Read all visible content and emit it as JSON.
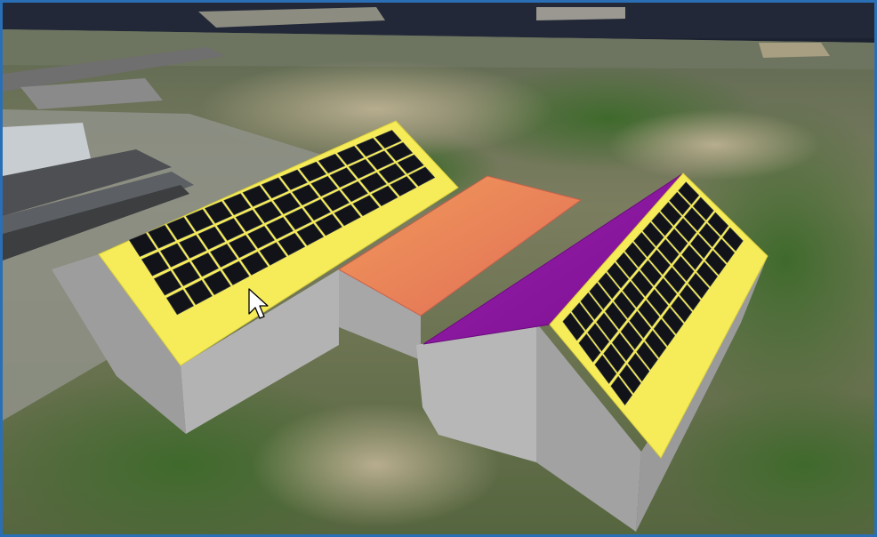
{
  "viewport": {
    "kind": "3d-map-view",
    "frame_color": "#2a6fb5",
    "sky_color": "#222838"
  },
  "scene": {
    "buildings": [
      {
        "id": "left-building",
        "roof_color": "#f7ef5a",
        "wall_color": "#b0b0b0",
        "solar_panel_columns": 14,
        "solar_panel_rows": 4
      },
      {
        "id": "middle-connector",
        "roof_gradient": [
          "#f0935a",
          "#e07050"
        ],
        "wall_color": "#a8a8a8"
      },
      {
        "id": "right-building",
        "roof_colors": [
          "#f7ef5a",
          "#8a1aa0"
        ],
        "wall_color": "#b4b4b4",
        "solar_panel_columns": 14,
        "solar_panel_rows": 4
      }
    ],
    "ground": {
      "colors": [
        "#6c7a4c",
        "#8a8a6a",
        "#4f6b38",
        "#9a9a90"
      ]
    }
  },
  "cursor": {
    "icon": "arrow-cursor-icon"
  }
}
